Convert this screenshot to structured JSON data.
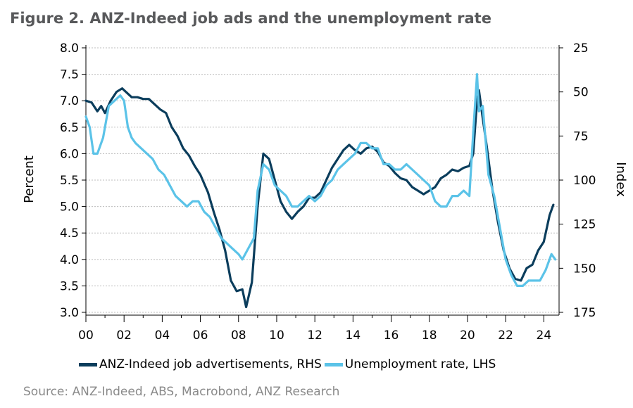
{
  "title": "Figure 2. ANZ-Indeed job ads and the unemployment rate",
  "source": "Source: ANZ-Indeed, ABS, Macrobond, ANZ Research",
  "chart_data": {
    "type": "line",
    "grid": true,
    "legend_position": "bottom",
    "x_ticks": [
      "00",
      "02",
      "04",
      "06",
      "08",
      "10",
      "12",
      "14",
      "16",
      "18",
      "20",
      "22",
      "24"
    ],
    "xlim": [
      2000,
      2024.8
    ],
    "left_axis": {
      "label": "Percent",
      "lim": [
        3.0,
        8.0
      ],
      "ticks": [
        "8.0",
        "7.5",
        "7.0",
        "6.5",
        "6.0",
        "5.5",
        "5.0",
        "4.5",
        "4.0",
        "3.5",
        "3.0"
      ]
    },
    "right_axis": {
      "label": "Index",
      "inverted": true,
      "lim": [
        25,
        175
      ],
      "ticks": [
        "25",
        "50",
        "75",
        "100",
        "125",
        "150",
        "175"
      ]
    },
    "series": [
      {
        "name": "ANZ-Indeed job advertisements, RHS",
        "axis": "right",
        "color": "#0b3d5c",
        "x": [
          2000.0,
          2000.3,
          2000.6,
          2000.8,
          2001.0,
          2001.3,
          2001.6,
          2001.9,
          2002.1,
          2002.4,
          2002.7,
          2003.0,
          2003.3,
          2003.6,
          2003.9,
          2004.2,
          2004.5,
          2004.8,
          2005.1,
          2005.4,
          2005.7,
          2006.0,
          2006.4,
          2006.7,
          2007.0,
          2007.3,
          2007.6,
          2007.9,
          2008.2,
          2008.4,
          2008.7,
          2009.0,
          2009.3,
          2009.6,
          2009.9,
          2010.2,
          2010.5,
          2010.8,
          2011.1,
          2011.4,
          2011.7,
          2012.0,
          2012.3,
          2012.6,
          2012.9,
          2013.2,
          2013.5,
          2013.8,
          2014.1,
          2014.4,
          2014.7,
          2015.0,
          2015.3,
          2015.6,
          2015.9,
          2016.2,
          2016.5,
          2016.8,
          2017.1,
          2017.4,
          2017.7,
          2018.0,
          2018.3,
          2018.6,
          2018.9,
          2019.2,
          2019.5,
          2019.8,
          2020.1,
          2020.3,
          2020.5,
          2020.6,
          2020.8,
          2021.0,
          2021.3,
          2021.6,
          2021.9,
          2022.2,
          2022.5,
          2022.8,
          2023.1,
          2023.4,
          2023.7,
          2024.0,
          2024.3,
          2024.5
        ],
        "values": [
          55,
          56,
          61,
          58,
          62,
          55,
          50,
          48,
          50,
          53,
          53,
          54,
          54,
          57,
          60,
          62,
          70,
          75,
          82,
          86,
          92,
          97,
          107,
          118,
          128,
          140,
          157,
          163,
          162,
          172,
          158,
          115,
          85,
          88,
          100,
          112,
          118,
          122,
          118,
          115,
          110,
          110,
          107,
          100,
          93,
          88,
          83,
          80,
          83,
          85,
          82,
          81,
          84,
          90,
          92,
          96,
          99,
          100,
          104,
          106,
          108,
          106,
          104,
          99,
          97,
          94,
          95,
          93,
          92,
          85,
          55,
          49,
          65,
          80,
          105,
          124,
          140,
          150,
          156,
          157,
          150,
          148,
          140,
          135,
          120,
          114
        ]
      },
      {
        "name": "Unemployment rate, LHS",
        "axis": "left",
        "color": "#5bc3e8",
        "x": [
          2000.0,
          2000.2,
          2000.4,
          2000.6,
          2000.9,
          2001.2,
          2001.5,
          2001.8,
          2002.0,
          2002.2,
          2002.4,
          2002.6,
          2002.9,
          2003.2,
          2003.5,
          2003.8,
          2004.1,
          2004.4,
          2004.7,
          2005.0,
          2005.3,
          2005.6,
          2005.9,
          2006.2,
          2006.5,
          2006.8,
          2007.1,
          2007.4,
          2007.7,
          2008.0,
          2008.2,
          2008.5,
          2008.8,
          2009.0,
          2009.3,
          2009.6,
          2009.9,
          2010.2,
          2010.5,
          2010.8,
          2011.1,
          2011.4,
          2011.7,
          2012.0,
          2012.3,
          2012.6,
          2012.9,
          2013.2,
          2013.5,
          2013.8,
          2014.1,
          2014.4,
          2014.7,
          2015.0,
          2015.3,
          2015.6,
          2015.9,
          2016.2,
          2016.5,
          2016.8,
          2017.1,
          2017.4,
          2017.7,
          2018.0,
          2018.3,
          2018.6,
          2018.9,
          2019.2,
          2019.5,
          2019.8,
          2020.1,
          2020.3,
          2020.5,
          2020.6,
          2020.8,
          2021.1,
          2021.4,
          2021.7,
          2022.0,
          2022.3,
          2022.6,
          2022.9,
          2023.2,
          2023.5,
          2023.8,
          2024.1,
          2024.4,
          2024.6
        ],
        "values": [
          6.7,
          6.5,
          6.0,
          6.0,
          6.3,
          6.9,
          7.0,
          7.1,
          7.0,
          6.5,
          6.3,
          6.2,
          6.1,
          6.0,
          5.9,
          5.7,
          5.6,
          5.4,
          5.2,
          5.1,
          5.0,
          5.1,
          5.1,
          4.9,
          4.8,
          4.6,
          4.4,
          4.3,
          4.2,
          4.1,
          4.0,
          4.2,
          4.4,
          5.3,
          5.8,
          5.7,
          5.4,
          5.3,
          5.2,
          5.0,
          5.0,
          5.1,
          5.2,
          5.1,
          5.2,
          5.4,
          5.5,
          5.7,
          5.8,
          5.9,
          6.0,
          6.2,
          6.2,
          6.1,
          6.1,
          5.8,
          5.8,
          5.7,
          5.7,
          5.8,
          5.7,
          5.6,
          5.5,
          5.4,
          5.1,
          5.0,
          5.0,
          5.2,
          5.2,
          5.3,
          5.2,
          6.4,
          7.5,
          6.8,
          6.9,
          5.6,
          5.2,
          4.6,
          4.0,
          3.7,
          3.5,
          3.5,
          3.6,
          3.6,
          3.6,
          3.8,
          4.1,
          4.0
        ]
      }
    ]
  }
}
